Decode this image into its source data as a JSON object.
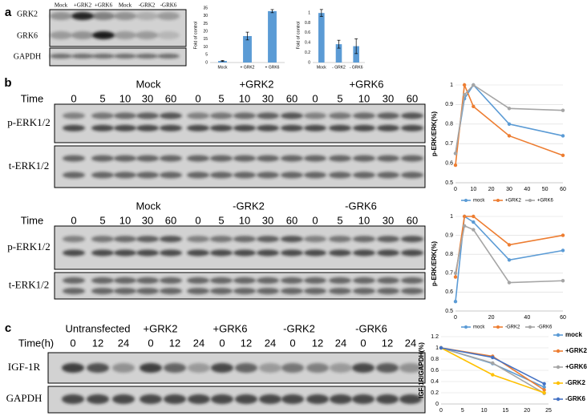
{
  "panels": {
    "a": {
      "letter": "a",
      "lanes": [
        "Mock",
        "+GRK2",
        "+GRK6",
        "Mock",
        "-GRK2",
        "-GRK6"
      ],
      "rows": [
        "GRK2",
        "GRK6",
        "GAPDH"
      ]
    },
    "b": {
      "letter": "b",
      "blots": [
        {
          "groups": [
            "Mock",
            "+GRK2",
            "+GRK6"
          ],
          "time_label": "Time",
          "times": [
            "0",
            "5",
            "10",
            "30",
            "60",
            "0",
            "5",
            "10",
            "30",
            "60",
            "0",
            "5",
            "10",
            "30",
            "60"
          ],
          "rows": [
            "p-ERK1/2",
            "t-ERK1/2"
          ]
        },
        {
          "groups": [
            "Mock",
            "-GRK2",
            "-GRK6"
          ],
          "time_label": "Time",
          "times": [
            "0",
            "5",
            "10",
            "30",
            "60",
            "0",
            "5",
            "10",
            "30",
            "60",
            "0",
            "5",
            "10",
            "30",
            "60"
          ],
          "rows": [
            "p-ERK1/2",
            "t-ERK1/2"
          ]
        }
      ]
    },
    "c": {
      "letter": "c",
      "groups": [
        "Untransfected",
        "+GRK2",
        "+GRK6",
        "-GRK2",
        "-GRK6"
      ],
      "time_label": "Time(h)",
      "times": [
        "0",
        "12",
        "24",
        "0",
        "12",
        "24",
        "0",
        "12",
        "24",
        "0",
        "12",
        "24",
        "0",
        "12",
        "24"
      ],
      "rows": [
        "IGF-1R",
        "GAPDH"
      ]
    }
  },
  "chart_data": [
    {
      "type": "bar",
      "ylabel": "Fold of control",
      "categories": [
        "Mock",
        "+ GRK2",
        "+ GRK6"
      ],
      "values": [
        1,
        17,
        33
      ],
      "errors": [
        0.3,
        2.5,
        1
      ],
      "color": "#5b9bd5",
      "ylim": [
        0,
        35
      ],
      "yticks": [
        0,
        5,
        10,
        15,
        20,
        25,
        30,
        35
      ],
      "grid": false
    },
    {
      "type": "bar",
      "ylabel": "Fold of control",
      "categories": [
        "Mock",
        "- GRK2",
        "- GRK6"
      ],
      "values": [
        1,
        0.37,
        0.33
      ],
      "errors": [
        0.07,
        0.08,
        0.15
      ],
      "color": "#5b9bd5",
      "ylim": [
        0,
        1.1
      ],
      "yticks": [
        0,
        0.2,
        0.4,
        0.6,
        0.8,
        1
      ],
      "grid": false
    },
    {
      "type": "line",
      "ylabel": "p-ERK/ERK(%)",
      "x": [
        0,
        5,
        10,
        30,
        60
      ],
      "xlim": [
        0,
        60
      ],
      "xticks": [
        0,
        10,
        20,
        30,
        40,
        50,
        60
      ],
      "ylim": [
        0.5,
        1
      ],
      "yticks": [
        0.5,
        0.6,
        0.7,
        0.8,
        0.9,
        1
      ],
      "grid": true,
      "legend": "bottom",
      "series": [
        {
          "name": "mock",
          "color": "#5b9bd5",
          "values": [
            0.65,
            0.93,
            1,
            0.8,
            0.74
          ]
        },
        {
          "name": "+GRK2",
          "color": "#ed7d31",
          "values": [
            0.59,
            1,
            0.89,
            0.74,
            0.64
          ]
        },
        {
          "name": "+GRK6",
          "color": "#a5a5a5",
          "values": [
            0.65,
            0.95,
            1,
            0.88,
            0.87
          ]
        }
      ]
    },
    {
      "type": "line",
      "ylabel": "p-ERK/ERK(%)",
      "x": [
        0,
        5,
        10,
        30,
        60
      ],
      "xlim": [
        0,
        60
      ],
      "xticks": [
        0,
        20,
        40,
        60
      ],
      "ylim": [
        0.5,
        1
      ],
      "yticks": [
        0.5,
        0.6,
        0.7,
        0.8,
        0.9,
        1
      ],
      "grid": true,
      "legend": "bottom",
      "series": [
        {
          "name": "mock",
          "color": "#5b9bd5",
          "values": [
            0.55,
            1,
            0.97,
            0.77,
            0.82
          ]
        },
        {
          "name": "-GRK2",
          "color": "#ed7d31",
          "values": [
            0.68,
            1,
            1,
            0.85,
            0.9
          ]
        },
        {
          "name": "-GRK6",
          "color": "#a5a5a5",
          "values": [
            0.7,
            0.95,
            0.93,
            0.65,
            0.66
          ]
        }
      ]
    },
    {
      "type": "line",
      "ylabel": "IGF-1R/GAPDH(%)",
      "x": [
        0,
        12,
        24
      ],
      "xlim": [
        0,
        25
      ],
      "xticks": [
        0,
        5,
        10,
        15,
        20,
        25
      ],
      "ylim": [
        0,
        1.2
      ],
      "yticks": [
        0,
        0.2,
        0.4,
        0.6,
        0.8,
        1,
        1.2
      ],
      "grid": true,
      "legend": "right",
      "series": [
        {
          "name": "mock",
          "color": "#5b9bd5",
          "values": [
            1,
            0.72,
            0.3
          ]
        },
        {
          "name": "+GRK2",
          "color": "#ed7d31",
          "values": [
            1,
            0.85,
            0.25
          ]
        },
        {
          "name": "+GRK6",
          "color": "#a5a5a5",
          "values": [
            1,
            0.73,
            0.19
          ]
        },
        {
          "name": "-GRK2",
          "color": "#ffc000",
          "values": [
            1,
            0.52,
            0.2
          ]
        },
        {
          "name": "-GRK6",
          "color": "#4472c4",
          "values": [
            1,
            0.83,
            0.36
          ]
        }
      ]
    }
  ]
}
